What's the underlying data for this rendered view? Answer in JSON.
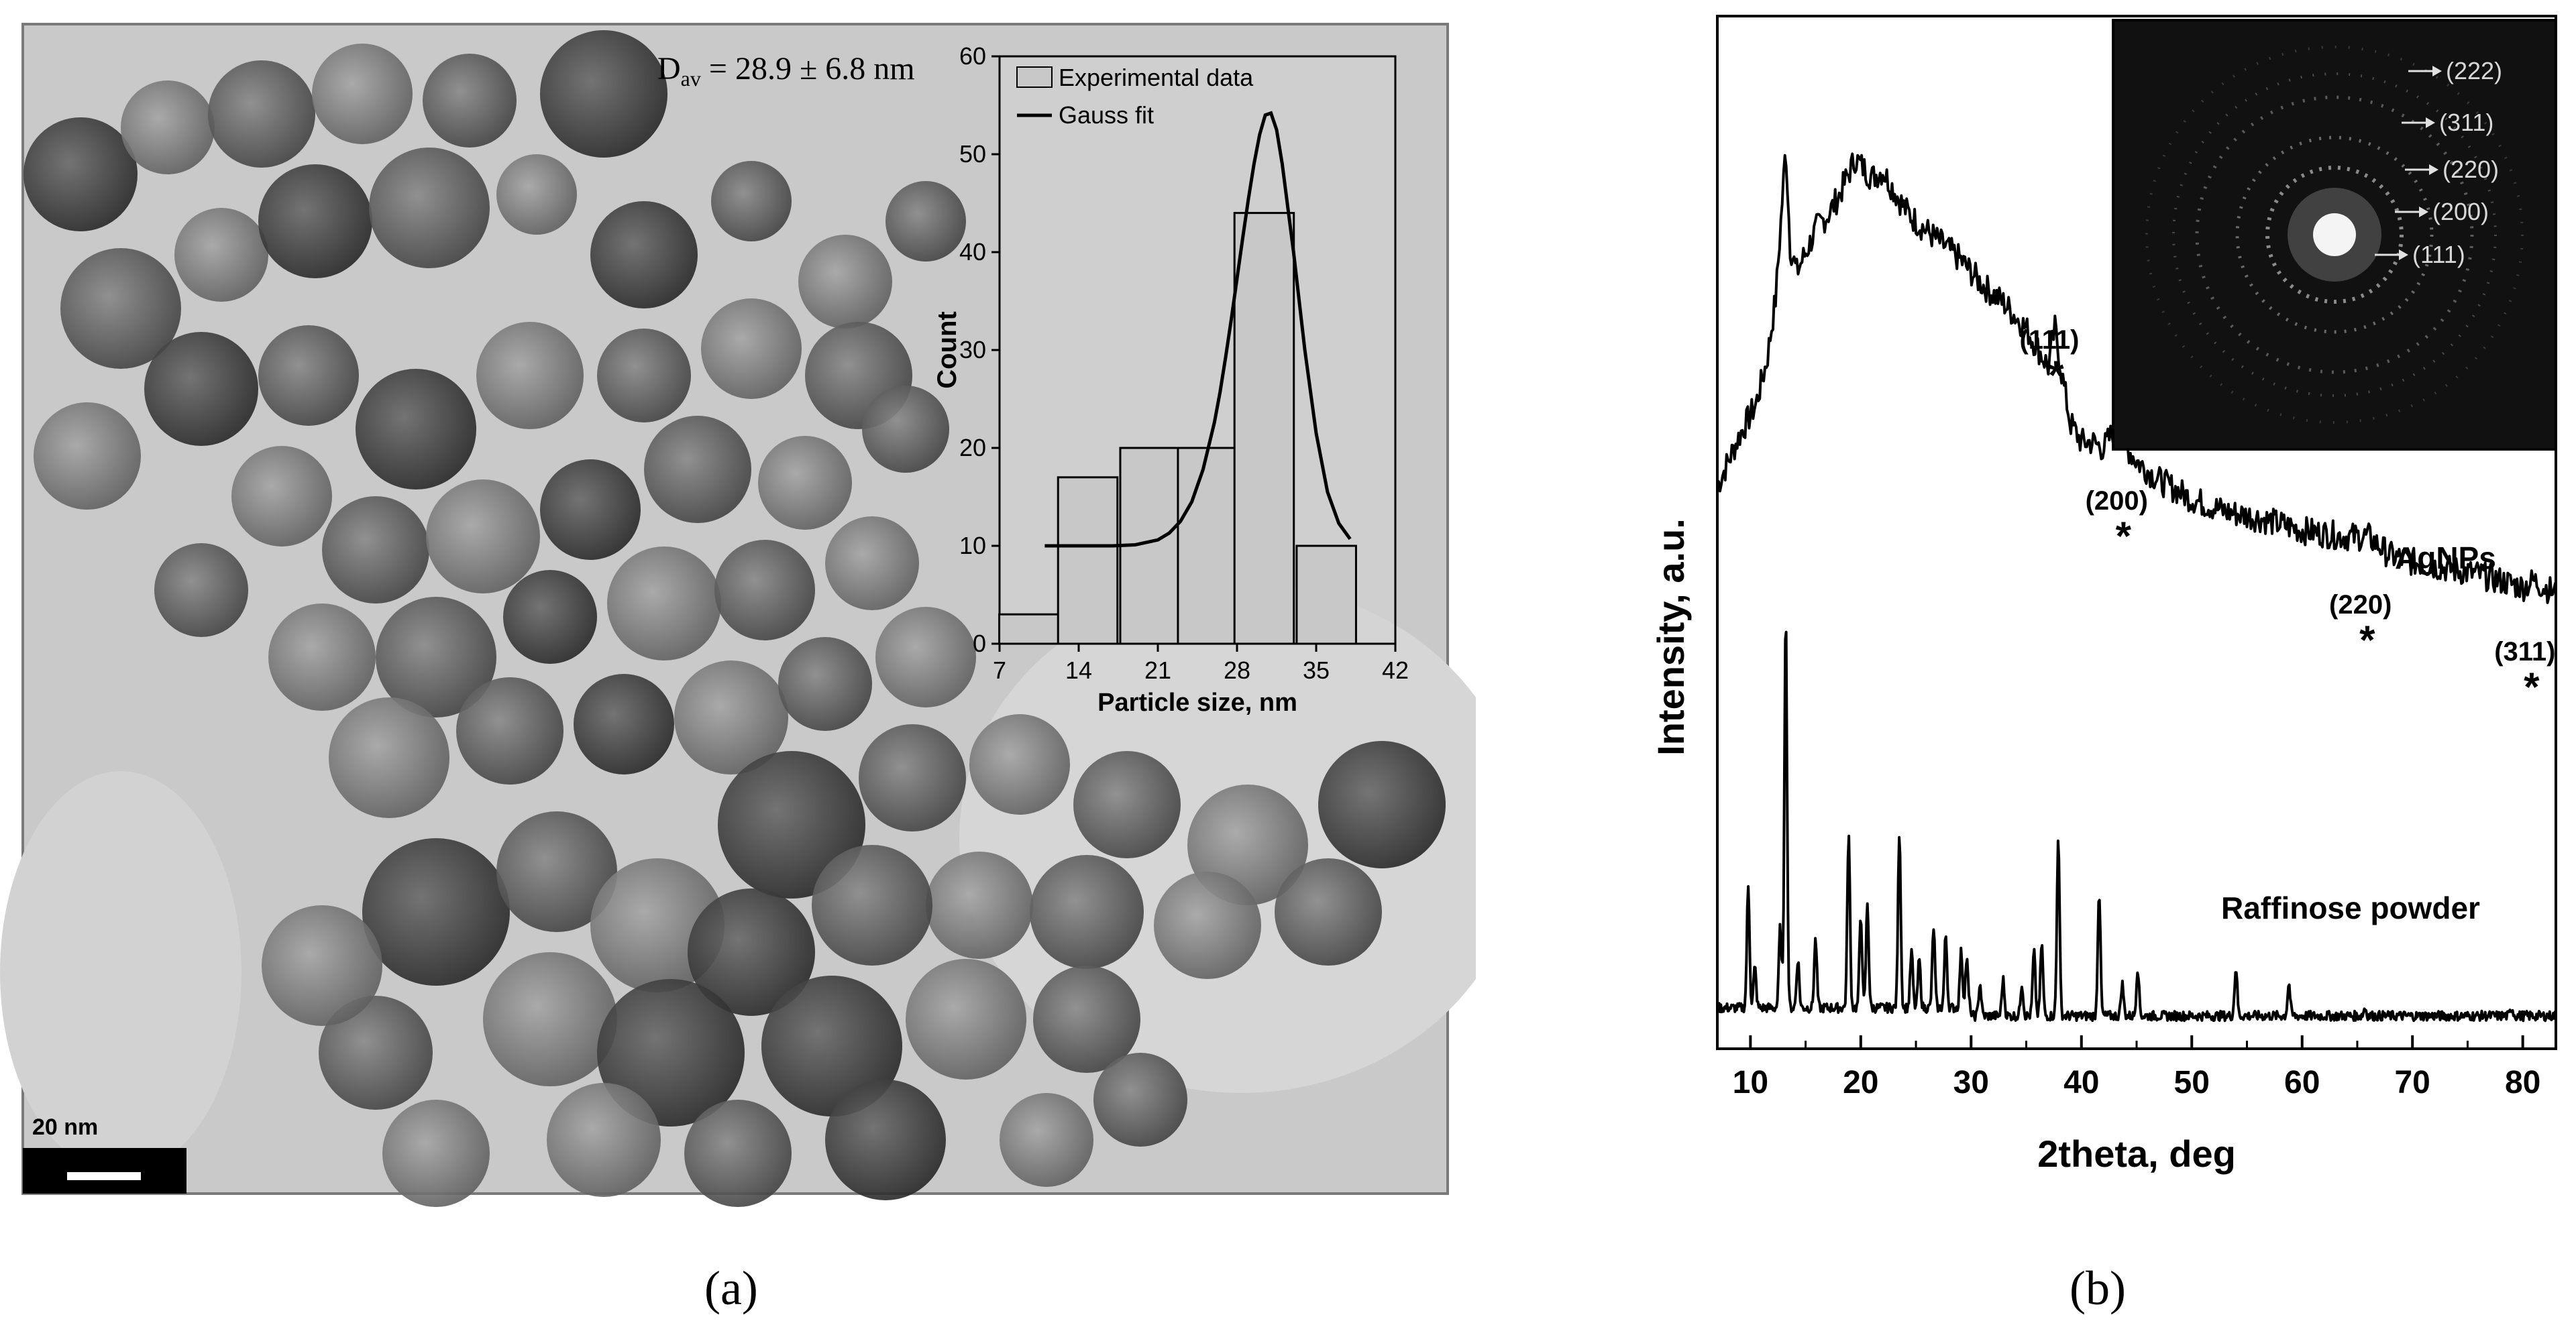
{
  "panel_a": {
    "caption": "(a)",
    "annotation": "D",
    "annotation_sub": "av",
    "annotation_rest": " = 28.9 ± 6.8 nm",
    "scale_bar_label": "20 nm",
    "colors": {
      "tem_background": "#c8c8c8",
      "particle_dark": "#3a3a3a",
      "particle_light": "#8a8a8a",
      "bar_fill": "#c8c8c8"
    }
  },
  "panel_b": {
    "caption": "(b)",
    "inset_labels": [
      "(222)",
      "(311)",
      "(220)",
      "(200)",
      "(111)"
    ],
    "colors": {
      "inset_background": "#111111",
      "inset_ring": "#cfcfcf"
    }
  },
  "chart_data": [
    {
      "type": "bar",
      "xlabel": "Particle size, nm",
      "ylabel": "Count",
      "xlim": [
        7,
        42
      ],
      "ylim": [
        0,
        60
      ],
      "xticks": [
        7,
        14,
        21,
        28,
        35,
        42
      ],
      "yticks": [
        0,
        10,
        20,
        30,
        40,
        50,
        60
      ],
      "series": [
        {
          "name": "Experimental data",
          "type": "bar",
          "bin_width": 5.25,
          "x": [
            9.6,
            14.8,
            20.3,
            25.4,
            30.4,
            35.9
          ],
          "values": [
            3,
            17,
            20,
            20,
            44,
            10
          ]
        },
        {
          "name": "Gauss fit",
          "type": "line",
          "x": [
            11,
            14,
            17,
            19,
            21,
            22,
            23,
            24,
            25,
            26,
            26.5,
            27,
            27.5,
            28,
            28.5,
            29,
            29.5,
            30,
            30.5,
            31,
            31.5,
            32,
            33,
            34,
            35,
            36,
            37,
            38
          ],
          "y": [
            10,
            10,
            10,
            10.1,
            10.6,
            11.3,
            12.5,
            14.5,
            17.8,
            22.6,
            25.7,
            29.3,
            33.2,
            37.3,
            41.4,
            45.4,
            49,
            52,
            54,
            54.2,
            52.5,
            49,
            40,
            30,
            21.5,
            15.5,
            12.3,
            10.7
          ]
        }
      ],
      "legend_position": "top-left"
    },
    {
      "type": "line",
      "xlabel": "2theta, deg",
      "ylabel": "Intensity, a.u.",
      "xlim": [
        7,
        83
      ],
      "ylim": [
        0,
        100
      ],
      "xticks": [
        10,
        20,
        30,
        40,
        50,
        60,
        70,
        80
      ],
      "series": [
        {
          "name": "AgNPs",
          "x": [
            7,
            9,
            10.5,
            11.5,
            12.3,
            12.8,
            13.2,
            13.6,
            14.2,
            15,
            16,
            17,
            18,
            19,
            19.5,
            20,
            21,
            22,
            23,
            24,
            25,
            27,
            29,
            31,
            33,
            35,
            36,
            37,
            37.6,
            38.2,
            39,
            40,
            41,
            42,
            43,
            43.5,
            44.2,
            45,
            47,
            50,
            53,
            56,
            60,
            64,
            66,
            68,
            70,
            73,
            76,
            78,
            80,
            81,
            83
          ],
          "y": [
            42,
            50,
            55,
            62,
            72,
            85,
            96,
            80,
            76,
            79,
            83,
            85,
            88,
            92,
            94,
            93,
            91,
            92,
            89,
            86,
            84,
            81,
            78,
            74,
            71,
            67,
            64,
            61,
            67,
            60,
            52,
            49,
            49,
            48,
            51,
            53,
            48,
            46,
            43,
            40,
            38,
            37,
            35,
            34,
            34,
            31,
            30,
            29,
            28,
            27,
            26,
            27,
            25
          ]
        },
        {
          "name": "Raffinose powder",
          "peaks": [
            {
              "x": 9.8,
              "h": 30
            },
            {
              "x": 10.4,
              "h": 10
            },
            {
              "x": 12.7,
              "h": 20
            },
            {
              "x": 13.2,
              "h": 98
            },
            {
              "x": 14.3,
              "h": 12
            },
            {
              "x": 15.9,
              "h": 17
            },
            {
              "x": 18.9,
              "h": 43
            },
            {
              "x": 20.0,
              "h": 23
            },
            {
              "x": 20.6,
              "h": 26
            },
            {
              "x": 23.5,
              "h": 44
            },
            {
              "x": 24.6,
              "h": 14
            },
            {
              "x": 25.3,
              "h": 12
            },
            {
              "x": 26.6,
              "h": 20
            },
            {
              "x": 27.7,
              "h": 18
            },
            {
              "x": 29.1,
              "h": 14
            },
            {
              "x": 29.6,
              "h": 12
            },
            {
              "x": 30.8,
              "h": 8
            },
            {
              "x": 32.9,
              "h": 9
            },
            {
              "x": 34.6,
              "h": 8
            },
            {
              "x": 35.7,
              "h": 16
            },
            {
              "x": 36.4,
              "h": 18
            },
            {
              "x": 37.9,
              "h": 45
            },
            {
              "x": 41.6,
              "h": 31
            },
            {
              "x": 43.7,
              "h": 8
            },
            {
              "x": 45.1,
              "h": 12
            },
            {
              "x": 54.0,
              "h": 12
            },
            {
              "x": 58.8,
              "h": 8
            },
            {
              "x": 65.7,
              "h": 2
            },
            {
              "x": 79.0,
              "h": 2
            }
          ]
        }
      ],
      "annotations": [
        {
          "text": "(111)",
          "x": 37.7
        },
        {
          "text": "(200)",
          "x": 43.8
        },
        {
          "text": "(220)",
          "x": 65.9
        },
        {
          "text": "(311)",
          "x": 80.8
        }
      ],
      "series_labels": [
        "AgNPs",
        "Raffinose powder"
      ]
    }
  ]
}
